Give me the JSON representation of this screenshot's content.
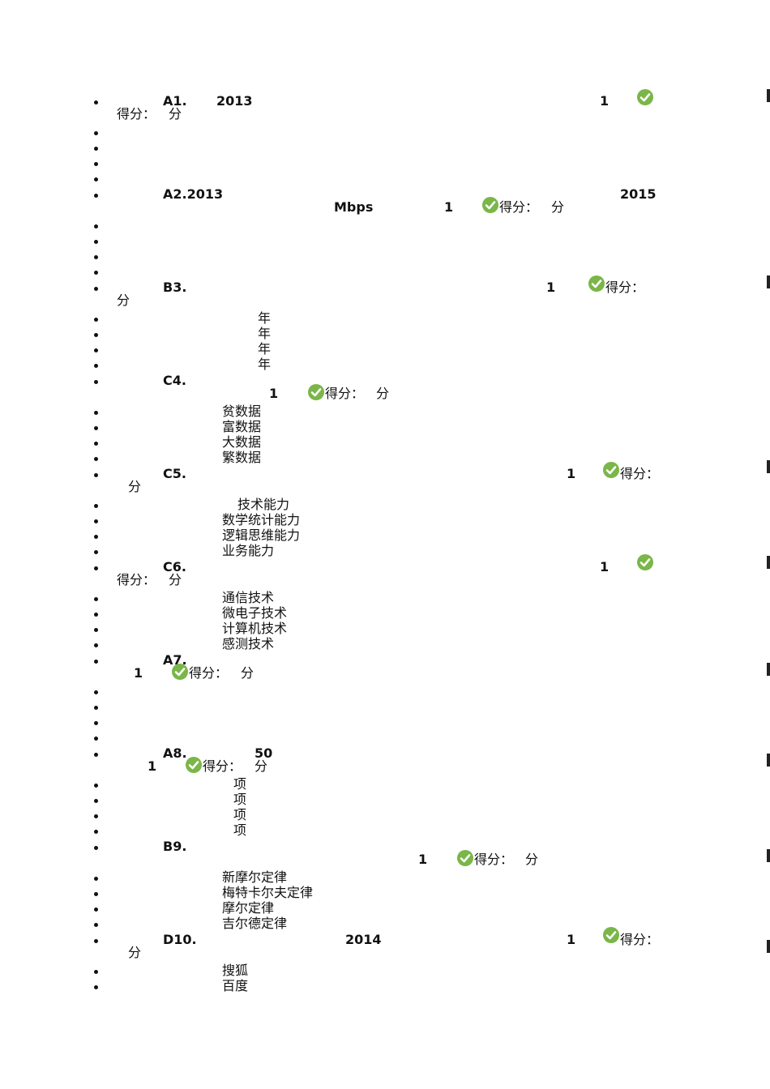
{
  "colors": {
    "check_fill": "#7ab648",
    "check_mark": "#ffffff",
    "text": "#111111"
  },
  "score_label": "得分：",
  "score_unit": "分",
  "one": "1",
  "icon": "check-circle-icon",
  "questions": [
    {
      "id": "A1.",
      "year": "2013"
    },
    {
      "id": "A2.2013",
      "year": "2015",
      "unit": "Mbps"
    },
    {
      "id": "B3.",
      "options": [
        "年",
        "年",
        "年",
        "年"
      ]
    },
    {
      "id": "C4.",
      "options": [
        "贫数据",
        "富数据",
        "大数据",
        "繁数据"
      ]
    },
    {
      "id": "C5.",
      "options": [
        "技术能力",
        "数学统计能力",
        "逻辑思维能力",
        "业务能力"
      ]
    },
    {
      "id": "C6.",
      "options": [
        "通信技术",
        "微电子技术",
        "计算机技术",
        "感测技术"
      ]
    },
    {
      "id": "A7."
    },
    {
      "id": "A8.",
      "count": "50",
      "options": [
        "项",
        "项",
        "项",
        "项"
      ]
    },
    {
      "id": "B9.",
      "options": [
        "新摩尔定律",
        "梅特卡尔夫定律",
        "摩尔定律",
        "吉尔德定律"
      ]
    },
    {
      "id": "D10.",
      "year": "2014",
      "options": [
        "搜狐",
        "百度"
      ]
    }
  ]
}
